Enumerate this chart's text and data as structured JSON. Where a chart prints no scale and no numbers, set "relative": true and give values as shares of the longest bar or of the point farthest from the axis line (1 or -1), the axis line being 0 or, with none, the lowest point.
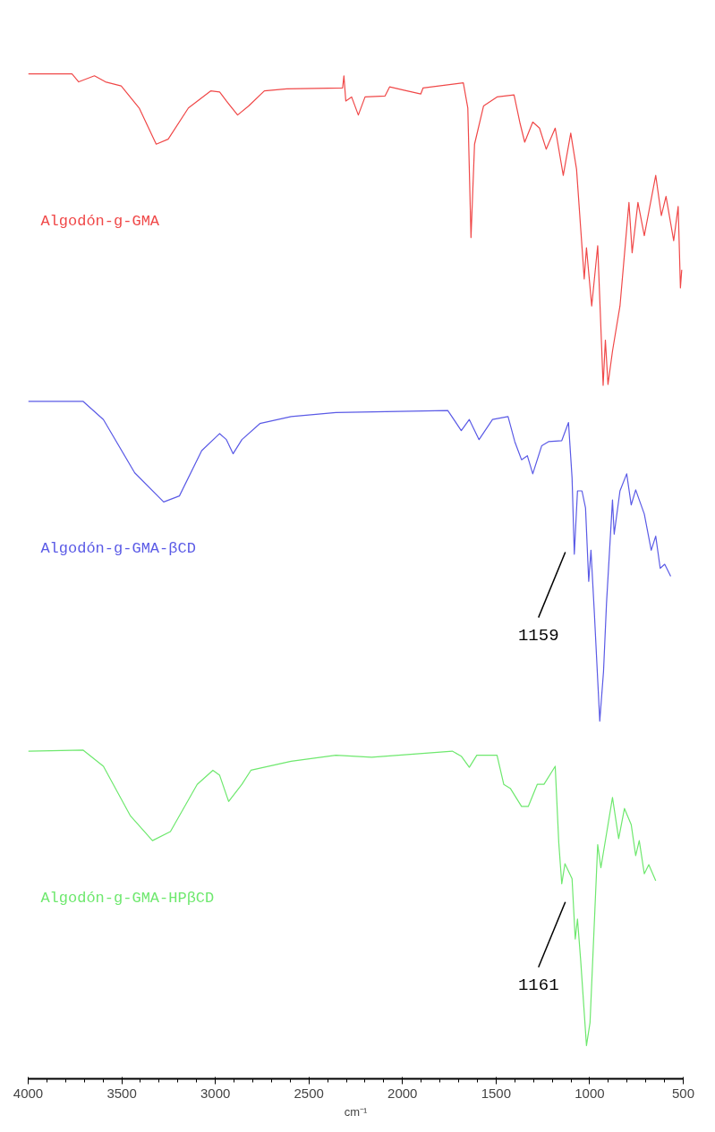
{
  "chart_data": {
    "type": "line",
    "relative": true,
    "xlabel": "cm⁻¹",
    "xlim": [
      4000,
      500
    ],
    "xticks": [
      4000,
      3500,
      3000,
      2500,
      2000,
      1500,
      1000,
      500
    ],
    "grid": false,
    "legend": false,
    "annotations": [
      "1159",
      "1161"
    ],
    "series": [
      {
        "name": "Algodón-g-GMA",
        "color": "#f04848",
        "x": [
          4000,
          3766,
          3730,
          3646,
          3587,
          3503,
          3407,
          3316,
          3252,
          3144,
          3025,
          2977,
          2941,
          2881,
          2822,
          2738,
          2619,
          2320,
          2313,
          2303,
          2272,
          2236,
          2200,
          2093,
          2069,
          1997,
          1902,
          1890,
          1675,
          1651,
          1634,
          1615,
          1567,
          1495,
          1404,
          1371,
          1347,
          1304,
          1268,
          1232,
          1184,
          1141,
          1101,
          1070,
          1029,
          1017,
          989,
          957,
          928,
          916,
          902,
          878,
          838,
          790,
          773,
          742,
          708,
          647,
          617,
          592,
          551,
          527,
          515,
          508
        ],
        "values": [
          1.0,
          1.0,
          0.992,
          0.998,
          0.992,
          0.988,
          0.966,
          0.93,
          0.935,
          0.966,
          0.983,
          0.982,
          0.973,
          0.959,
          0.968,
          0.983,
          0.985,
          0.986,
          0.998,
          0.973,
          0.977,
          0.959,
          0.977,
          0.978,
          0.987,
          0.984,
          0.98,
          0.986,
          0.991,
          0.966,
          0.837,
          0.93,
          0.968,
          0.977,
          0.979,
          0.95,
          0.932,
          0.952,
          0.946,
          0.925,
          0.946,
          0.899,
          0.941,
          0.905,
          0.796,
          0.827,
          0.769,
          0.829,
          0.69,
          0.735,
          0.691,
          0.724,
          0.769,
          0.872,
          0.822,
          0.872,
          0.839,
          0.899,
          0.859,
          0.878,
          0.834,
          0.868,
          0.787,
          0.805
        ]
      },
      {
        "name": "Algodón-g-GMA-βCD",
        "color": "#5a5ae6",
        "x": [
          4000,
          3706,
          3598,
          3431,
          3276,
          3192,
          3073,
          2977,
          2941,
          2905,
          2858,
          2762,
          2595,
          2356,
          1758,
          1686,
          1643,
          1591,
          1519,
          1436,
          1400,
          1364,
          1333,
          1304,
          1256,
          1220,
          1149,
          1113,
          1094,
          1082,
          1065,
          1041,
          1022,
          1005,
          993,
          975,
          946,
          926,
          910,
          878,
          869,
          838,
          802,
          778,
          754,
          708,
          671,
          647,
          623,
          599,
          567
        ],
        "values": [
          0.674,
          0.674,
          0.656,
          0.603,
          0.574,
          0.58,
          0.625,
          0.642,
          0.636,
          0.622,
          0.636,
          0.652,
          0.659,
          0.663,
          0.665,
          0.645,
          0.656,
          0.636,
          0.656,
          0.659,
          0.634,
          0.616,
          0.62,
          0.602,
          0.63,
          0.634,
          0.635,
          0.653,
          0.598,
          0.522,
          0.585,
          0.585,
          0.568,
          0.495,
          0.526,
          0.464,
          0.356,
          0.405,
          0.473,
          0.576,
          0.542,
          0.585,
          0.602,
          0.571,
          0.586,
          0.562,
          0.526,
          0.54,
          0.508,
          0.512,
          0.5
        ]
      },
      {
        "name": "Algodón-g-GMA-HPβCD",
        "color": "#6ee86e",
        "x": [
          4000,
          3706,
          3598,
          3455,
          3336,
          3240,
          3097,
          3013,
          2977,
          2929,
          2858,
          2810,
          2595,
          2356,
          2165,
          1734,
          1686,
          1643,
          1603,
          1495,
          1459,
          1424,
          1364,
          1328,
          1280,
          1244,
          1184,
          1165,
          1149,
          1132,
          1094,
          1077,
          1065,
          1048,
          1017,
          998,
          957,
          940,
          878,
          845,
          814,
          778,
          754,
          735,
          708,
          684,
          647
        ],
        "values": [
          0.326,
          0.327,
          0.311,
          0.262,
          0.237,
          0.246,
          0.293,
          0.307,
          0.302,
          0.276,
          0.293,
          0.307,
          0.316,
          0.322,
          0.32,
          0.326,
          0.321,
          0.31,
          0.322,
          0.322,
          0.293,
          0.289,
          0.271,
          0.271,
          0.293,
          0.293,
          0.311,
          0.235,
          0.194,
          0.214,
          0.199,
          0.139,
          0.159,
          0.118,
          0.033,
          0.056,
          0.233,
          0.21,
          0.28,
          0.239,
          0.269,
          0.253,
          0.222,
          0.237,
          0.204,
          0.213,
          0.197
        ]
      }
    ]
  }
}
